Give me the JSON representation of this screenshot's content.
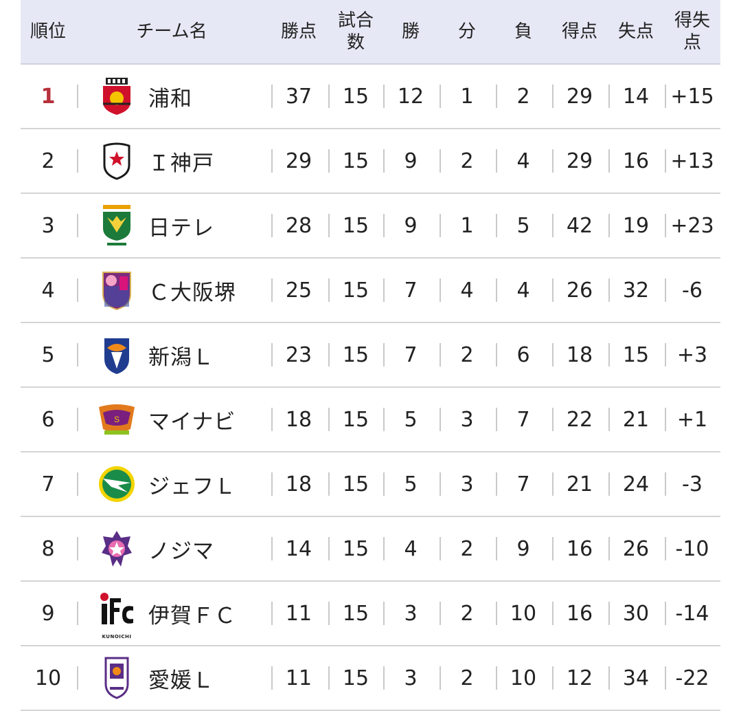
{
  "header": {
    "rank": "順位",
    "team": "チーム名",
    "points": "勝点",
    "played_line1": "試合",
    "played_line2": "数",
    "won": "勝",
    "drawn": "分",
    "lost": "負",
    "goals_for": "得点",
    "goals_against": "失点",
    "goal_diff_line1": "得失",
    "goal_diff_line2": "点"
  },
  "colors": {
    "header_bg": "#e7e8f5",
    "first_rank": "#b6303a",
    "separator": "#c9c9c9"
  },
  "rows": [
    {
      "rank": "1",
      "team": "浦和",
      "logo": "urawa-logo-icon",
      "points": "37",
      "played": "15",
      "won": "12",
      "drawn": "1",
      "lost": "2",
      "gf": "29",
      "ga": "14",
      "gd": "+15"
    },
    {
      "rank": "2",
      "team": "Ｉ神戸",
      "logo": "inac-kobe-logo-icon",
      "points": "29",
      "played": "15",
      "won": "9",
      "drawn": "2",
      "lost": "4",
      "gf": "29",
      "ga": "16",
      "gd": "+13"
    },
    {
      "rank": "3",
      "team": "日テレ",
      "logo": "nippon-tv-beleza-logo-icon",
      "points": "28",
      "played": "15",
      "won": "9",
      "drawn": "1",
      "lost": "5",
      "gf": "42",
      "ga": "19",
      "gd": "+23"
    },
    {
      "rank": "4",
      "team": "Ｃ大阪堺",
      "logo": "cerezo-osaka-sakai-logo-icon",
      "points": "25",
      "played": "15",
      "won": "7",
      "drawn": "4",
      "lost": "4",
      "gf": "26",
      "ga": "32",
      "gd": "-6"
    },
    {
      "rank": "5",
      "team": "新潟Ｌ",
      "logo": "niigata-ladies-logo-icon",
      "points": "23",
      "played": "15",
      "won": "7",
      "drawn": "2",
      "lost": "6",
      "gf": "18",
      "ga": "15",
      "gd": "+3"
    },
    {
      "rank": "6",
      "team": "マイナビ",
      "logo": "mynavi-sendai-logo-icon",
      "points": "18",
      "played": "15",
      "won": "5",
      "drawn": "3",
      "lost": "7",
      "gf": "22",
      "ga": "21",
      "gd": "+1"
    },
    {
      "rank": "7",
      "team": "ジェフＬ",
      "logo": "jef-ladies-logo-icon",
      "points": "18",
      "played": "15",
      "won": "5",
      "drawn": "3",
      "lost": "7",
      "gf": "21",
      "ga": "24",
      "gd": "-3"
    },
    {
      "rank": "8",
      "team": "ノジマ",
      "logo": "nojima-stella-logo-icon",
      "points": "14",
      "played": "15",
      "won": "4",
      "drawn": "2",
      "lost": "9",
      "gf": "16",
      "ga": "26",
      "gd": "-10"
    },
    {
      "rank": "9",
      "team": "伊賀ＦＣ",
      "logo": "iga-fc-kunoichi-logo-icon",
      "logo_text": "KUNOICHI",
      "points": "11",
      "played": "15",
      "won": "3",
      "drawn": "2",
      "lost": "10",
      "gf": "16",
      "ga": "30",
      "gd": "-14"
    },
    {
      "rank": "10",
      "team": "愛媛Ｌ",
      "logo": "ehime-ladies-logo-icon",
      "points": "11",
      "played": "15",
      "won": "3",
      "drawn": "2",
      "lost": "10",
      "gf": "12",
      "ga": "34",
      "gd": "-22"
    }
  ]
}
